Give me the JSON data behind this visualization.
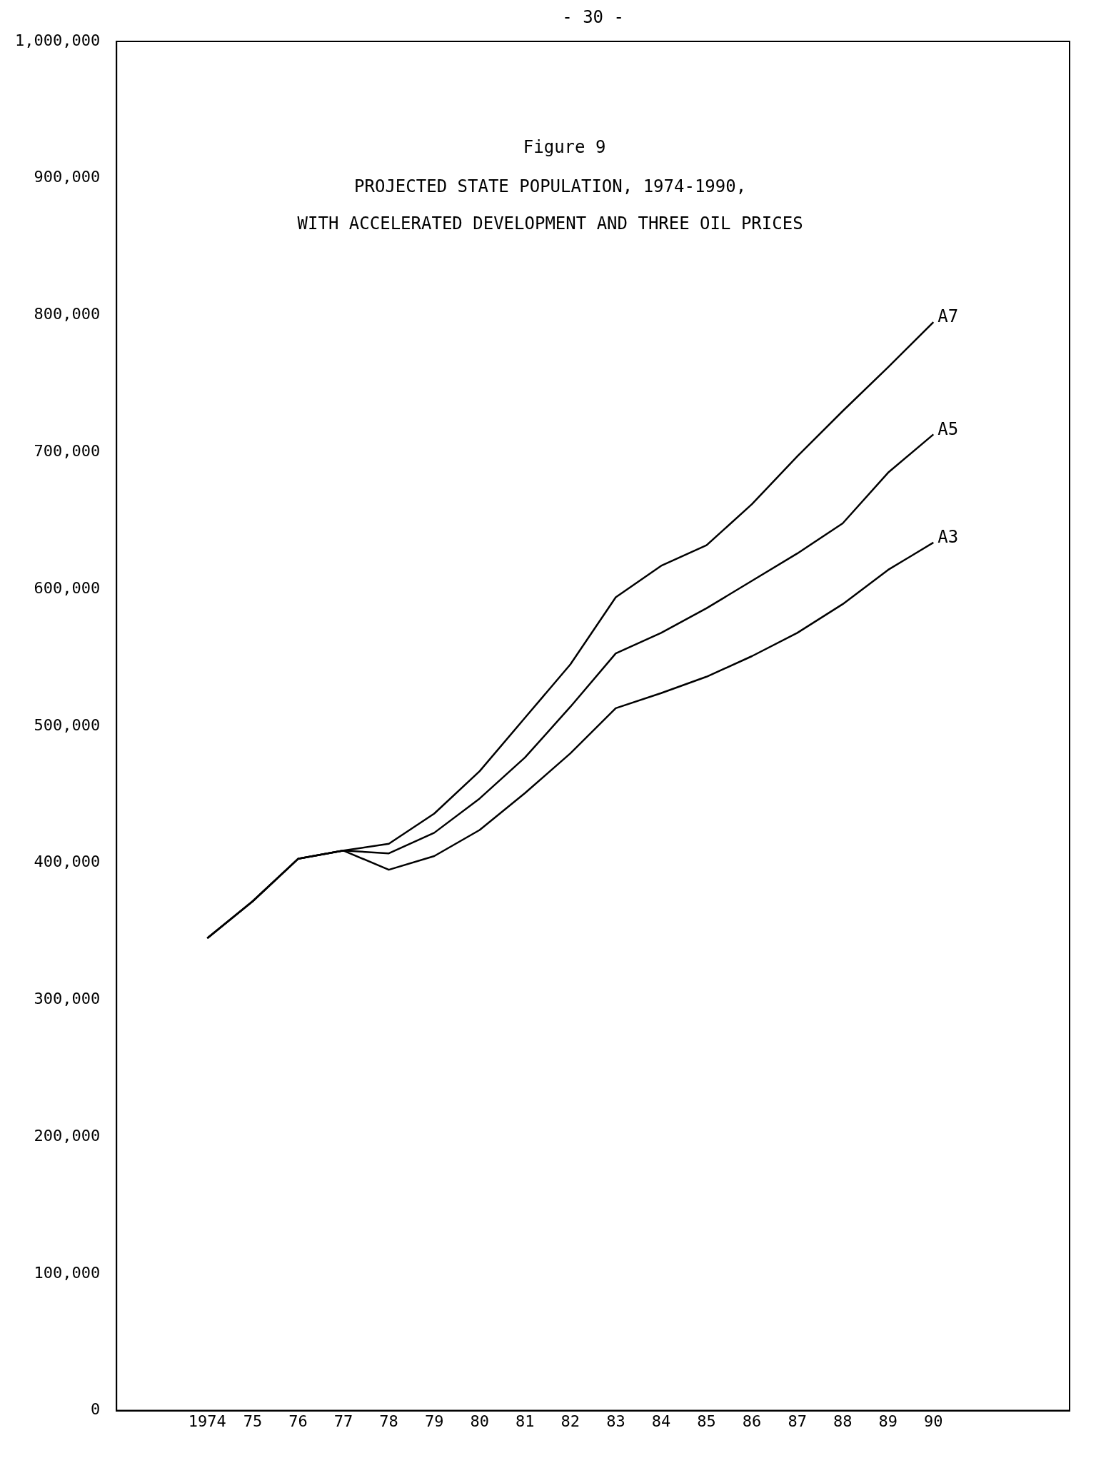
{
  "chart_data": {
    "type": "line",
    "title": "Figure 9",
    "subtitle": "PROJECTED STATE POPULATION, 1974-1990, WITH ACCELERATED DEVELOPMENT AND THREE OIL PRICES",
    "annotations": [
      "- 30 -"
    ],
    "x": [
      1974,
      1975,
      1976,
      1977,
      1978,
      1979,
      1980,
      1981,
      1982,
      1983,
      1984,
      1985,
      1986,
      1987,
      1988,
      1989,
      1990
    ],
    "series": [
      {
        "name": "A7",
        "color": "#000000",
        "values": [
          345000,
          372000,
          403000,
          409000,
          414000,
          436000,
          467000,
          506000,
          545000,
          594000,
          617000,
          632000,
          662000,
          697000,
          730000,
          762000,
          795000
        ]
      },
      {
        "name": "A5",
        "color": "#000000",
        "values": [
          345000,
          372000,
          403000,
          409000,
          407000,
          422000,
          447000,
          477000,
          514000,
          553000,
          568000,
          586000,
          606000,
          626000,
          648000,
          685000,
          713000
        ]
      },
      {
        "name": "A3",
        "color": "#000000",
        "values": [
          345000,
          372000,
          403000,
          409000,
          395000,
          405000,
          424000,
          451000,
          480000,
          513000,
          524000,
          536000,
          551000,
          568000,
          589000,
          614000,
          634000
        ]
      }
    ],
    "xlim": [
      1972,
      1993
    ],
    "xticks": [
      {
        "value": 1974,
        "label": "1974"
      },
      {
        "value": 1975,
        "label": "75"
      },
      {
        "value": 1976,
        "label": "76"
      },
      {
        "value": 1977,
        "label": "77"
      },
      {
        "value": 1978,
        "label": "78"
      },
      {
        "value": 1979,
        "label": "79"
      },
      {
        "value": 1980,
        "label": "80"
      },
      {
        "value": 1981,
        "label": "81"
      },
      {
        "value": 1982,
        "label": "82"
      },
      {
        "value": 1983,
        "label": "83"
      },
      {
        "value": 1984,
        "label": "84"
      },
      {
        "value": 1985,
        "label": "85"
      },
      {
        "value": 1986,
        "label": "86"
      },
      {
        "value": 1987,
        "label": "87"
      },
      {
        "value": 1988,
        "label": "88"
      },
      {
        "value": 1989,
        "label": "89"
      },
      {
        "value": 1990,
        "label": "90"
      }
    ],
    "ylim": [
      0,
      1000000
    ],
    "yticks": [
      0,
      {
        "value": 100000,
        "label": "100,000"
      },
      {
        "value": 200000,
        "label": "200,000"
      },
      {
        "value": 300000,
        "label": "300,000"
      },
      {
        "value": 400000,
        "label": "400,000"
      },
      {
        "value": 500000,
        "label": "500,000"
      },
      {
        "value": 600000,
        "label": "600,000"
      },
      {
        "value": 700000,
        "label": "700,000"
      },
      {
        "value": 800000,
        "label": "800,000"
      },
      {
        "value": 900000,
        "label": "900,000"
      },
      {
        "value": 1000000,
        "label": "1,000,000"
      }
    ],
    "grid": false,
    "legend": false,
    "marker": "none",
    "line_style": "solid"
  }
}
